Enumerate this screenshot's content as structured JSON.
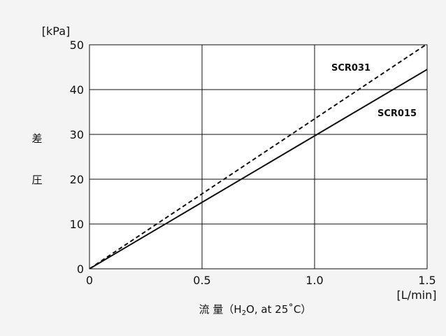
{
  "chart_data": {
    "type": "line",
    "ylabel": "差圧",
    "y_unit": "[kPa]",
    "xlabel": "流 量（H2O, at 25°C）",
    "xlabel_parts": {
      "name": "流 量（H",
      "sub": "2",
      "rest": "O, at 25˚C）"
    },
    "x_unit": "[L/min]",
    "xlim": [
      0,
      1.5
    ],
    "ylim": [
      0,
      50
    ],
    "x_ticks": [
      0,
      0.5,
      1.0,
      1.5
    ],
    "x_tick_labels": [
      "0",
      "0.5",
      "1.0",
      "1.5"
    ],
    "y_ticks": [
      0,
      10,
      20,
      30,
      40,
      50
    ],
    "y_tick_labels": [
      "0",
      "10",
      "20",
      "30",
      "40",
      "50"
    ],
    "grid": true,
    "series": [
      {
        "name": "SCR031",
        "style": "dashed",
        "x": [
          0,
          1.5
        ],
        "y": [
          0,
          50.2
        ]
      },
      {
        "name": "SCR015",
        "style": "solid",
        "x": [
          0,
          1.5
        ],
        "y": [
          0,
          44.5
        ]
      }
    ]
  },
  "colors": {
    "line": "#111111",
    "grid": "#111111",
    "plot_bg": "#ffffff",
    "page_bg": "#f4f4f4"
  }
}
